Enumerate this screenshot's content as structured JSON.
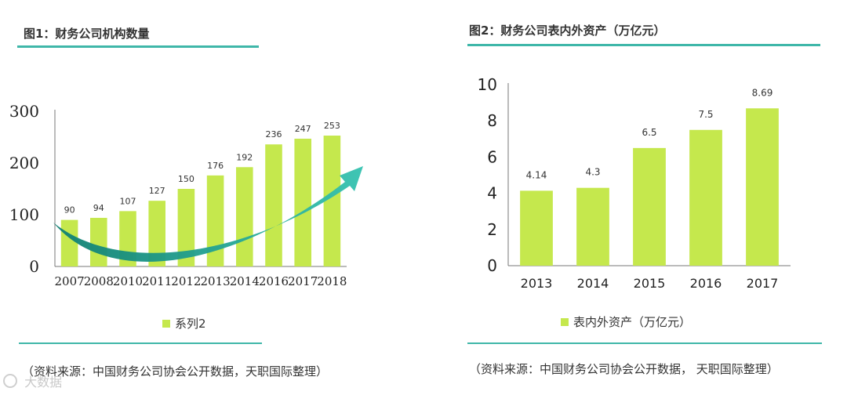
{
  "colors": {
    "bar": "#c5e84d",
    "rule": "#3fb7a9",
    "arrow": "#1f9e8e",
    "arrow_head": "#2fb7a6"
  },
  "watermark": {
    "text": "大数据",
    "icon": "watermark-logo-icon"
  },
  "chart_data": [
    {
      "type": "bar",
      "title": "图1：财务公司机构数量",
      "categories": [
        "2007",
        "2008",
        "2010",
        "2011",
        "2012",
        "2013",
        "2014",
        "2016",
        "2017",
        "2018"
      ],
      "series": [
        {
          "name": "系列2",
          "values": [
            90,
            94,
            107,
            127,
            150,
            176,
            192,
            236,
            247,
            253
          ]
        }
      ],
      "ylim": [
        0,
        300
      ],
      "yticks": [
        0,
        100,
        200,
        300
      ],
      "grid": false,
      "legend": "bottom",
      "source": "（资料来源：中国财务公司协会公开数据，天职国际整理）"
    },
    {
      "type": "bar",
      "title": "图2：财务公司表内外资产（万亿元）",
      "categories": [
        "2013",
        "2014",
        "2015",
        "2016",
        "2017"
      ],
      "series": [
        {
          "name": "表内外资产（万亿元）",
          "values": [
            4.14,
            4.3,
            6.5,
            7.5,
            8.69
          ]
        }
      ],
      "ylim": [
        0,
        10
      ],
      "yticks": [
        0,
        2,
        4,
        6,
        8,
        10
      ],
      "grid": false,
      "legend": "bottom",
      "source": "（资料来源：中国财务公司协会公开数据，  天职国际整理）"
    }
  ]
}
